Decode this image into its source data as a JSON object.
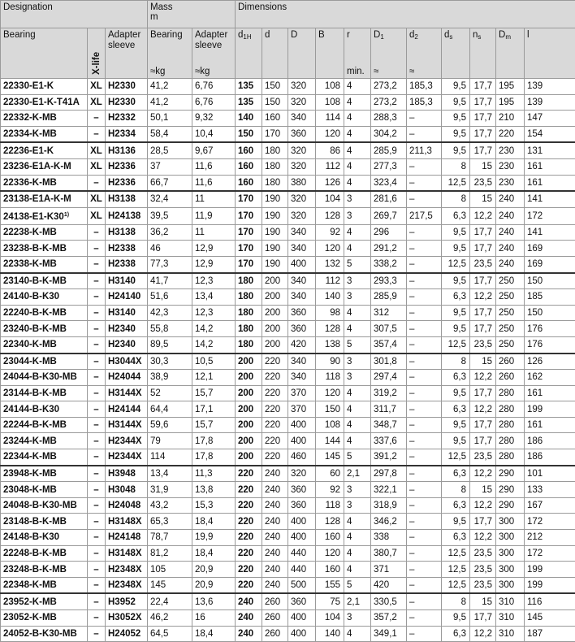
{
  "header": {
    "designation": "Designation",
    "mass": "Mass",
    "mass_symbol": "m",
    "dimensions": "Dimensions",
    "columns": [
      {
        "label": "Bearing"
      },
      {
        "label": "X-life"
      },
      {
        "label": "Adapter sleeve"
      },
      {
        "label": "Bearing",
        "unit": "≈kg"
      },
      {
        "label": "Adapter sleeve",
        "unit": "≈kg"
      },
      {
        "label": "d",
        "sub": "1H"
      },
      {
        "label": "d"
      },
      {
        "label": "D"
      },
      {
        "label": "B"
      },
      {
        "label": "r",
        "unit": "min."
      },
      {
        "label": "D",
        "sub": "1",
        "unit": "≈"
      },
      {
        "label": "d",
        "sub": "2",
        "unit": "≈"
      },
      {
        "label": "d",
        "sub": "s"
      },
      {
        "label": "n",
        "sub": "s"
      },
      {
        "label": "D",
        "sub": "m"
      },
      {
        "label": "l"
      }
    ]
  },
  "table": {
    "groups": [
      [
        [
          "22330-E1-K",
          "XL",
          "H2330",
          "41,2",
          "6,76",
          "135",
          "150",
          "320",
          "108",
          "4",
          "273,2",
          "185,3",
          "9,5",
          "17,7",
          "195",
          "139"
        ],
        [
          "22330-E1-K-T41A",
          "XL",
          "H2330",
          "41,2",
          "6,76",
          "135",
          "150",
          "320",
          "108",
          "4",
          "273,2",
          "185,3",
          "9,5",
          "17,7",
          "195",
          "139"
        ],
        [
          "22332-K-MB",
          "–",
          "H2332",
          "50,1",
          "9,32",
          "140",
          "160",
          "340",
          "114",
          "4",
          "288,3",
          "–",
          "9,5",
          "17,7",
          "210",
          "147"
        ],
        [
          "22334-K-MB",
          "–",
          "H2334",
          "58,4",
          "10,4",
          "150",
          "170",
          "360",
          "120",
          "4",
          "304,2",
          "–",
          "9,5",
          "17,7",
          "220",
          "154"
        ]
      ],
      [
        [
          "22236-E1-K",
          "XL",
          "H3136",
          "28,5",
          "9,67",
          "160",
          "180",
          "320",
          "86",
          "4",
          "285,9",
          "211,3",
          "9,5",
          "17,7",
          "230",
          "131"
        ],
        [
          "23236-E1A-K-M",
          "XL",
          "H2336",
          "37",
          "11,6",
          "160",
          "180",
          "320",
          "112",
          "4",
          "277,3",
          "–",
          "8",
          "15",
          "230",
          "161"
        ],
        [
          "22336-K-MB",
          "–",
          "H2336",
          "66,7",
          "11,6",
          "160",
          "180",
          "380",
          "126",
          "4",
          "323,4",
          "–",
          "12,5",
          "23,5",
          "230",
          "161"
        ]
      ],
      [
        [
          "23138-E1A-K-M",
          "XL",
          "H3138",
          "32,4",
          "11",
          "170",
          "190",
          "320",
          "104",
          "3",
          "281,6",
          "–",
          "8",
          "15",
          "240",
          "141"
        ],
        [
          {
            "text": "24138-E1-K30",
            "note": "1)"
          },
          "XL",
          "H24138",
          "39,5",
          "11,9",
          "170",
          "190",
          "320",
          "128",
          "3",
          "269,7",
          "217,5",
          "6,3",
          "12,2",
          "240",
          "172"
        ],
        [
          "22238-K-MB",
          "–",
          "H3138",
          "36,2",
          "11",
          "170",
          "190",
          "340",
          "92",
          "4",
          "296",
          "–",
          "9,5",
          "17,7",
          "240",
          "141"
        ],
        [
          "23238-B-K-MB",
          "–",
          "H2338",
          "46",
          "12,9",
          "170",
          "190",
          "340",
          "120",
          "4",
          "291,2",
          "–",
          "9,5",
          "17,7",
          "240",
          "169"
        ],
        [
          "22338-K-MB",
          "–",
          "H2338",
          "77,3",
          "12,9",
          "170",
          "190",
          "400",
          "132",
          "5",
          "338,2",
          "–",
          "12,5",
          "23,5",
          "240",
          "169"
        ]
      ],
      [
        [
          "23140-B-K-MB",
          "–",
          "H3140",
          "41,7",
          "12,3",
          "180",
          "200",
          "340",
          "112",
          "3",
          "293,3",
          "–",
          "9,5",
          "17,7",
          "250",
          "150"
        ],
        [
          "24140-B-K30",
          "–",
          "H24140",
          "51,6",
          "13,4",
          "180",
          "200",
          "340",
          "140",
          "3",
          "285,9",
          "–",
          "6,3",
          "12,2",
          "250",
          "185"
        ],
        [
          "22240-B-K-MB",
          "–",
          "H3140",
          "42,3",
          "12,3",
          "180",
          "200",
          "360",
          "98",
          "4",
          "312",
          "–",
          "9,5",
          "17,7",
          "250",
          "150"
        ],
        [
          "23240-B-K-MB",
          "–",
          "H2340",
          "55,8",
          "14,2",
          "180",
          "200",
          "360",
          "128",
          "4",
          "307,5",
          "–",
          "9,5",
          "17,7",
          "250",
          "176"
        ],
        [
          "22340-K-MB",
          "–",
          "H2340",
          "89,5",
          "14,2",
          "180",
          "200",
          "420",
          "138",
          "5",
          "357,4",
          "–",
          "12,5",
          "23,5",
          "250",
          "176"
        ]
      ],
      [
        [
          "23044-K-MB",
          "–",
          "H3044X",
          "30,3",
          "10,5",
          "200",
          "220",
          "340",
          "90",
          "3",
          "301,8",
          "–",
          "8",
          "15",
          "260",
          "126"
        ],
        [
          "24044-B-K30-MB",
          "–",
          "H24044",
          "38,9",
          "12,1",
          "200",
          "220",
          "340",
          "118",
          "3",
          "297,4",
          "–",
          "6,3",
          "12,2",
          "260",
          "162"
        ],
        [
          "23144-B-K-MB",
          "–",
          "H3144X",
          "52",
          "15,7",
          "200",
          "220",
          "370",
          "120",
          "4",
          "319,2",
          "–",
          "9,5",
          "17,7",
          "280",
          "161"
        ],
        [
          "24144-B-K30",
          "–",
          "H24144",
          "64,4",
          "17,1",
          "200",
          "220",
          "370",
          "150",
          "4",
          "311,7",
          "–",
          "6,3",
          "12,2",
          "280",
          "199"
        ],
        [
          "22244-B-K-MB",
          "–",
          "H3144X",
          "59,6",
          "15,7",
          "200",
          "220",
          "400",
          "108",
          "4",
          "348,7",
          "–",
          "9,5",
          "17,7",
          "280",
          "161"
        ],
        [
          "23244-K-MB",
          "–",
          "H2344X",
          "79",
          "17,8",
          "200",
          "220",
          "400",
          "144",
          "4",
          "337,6",
          "–",
          "9,5",
          "17,7",
          "280",
          "186"
        ],
        [
          "22344-K-MB",
          "–",
          "H2344X",
          "114",
          "17,8",
          "200",
          "220",
          "460",
          "145",
          "5",
          "391,2",
          "–",
          "12,5",
          "23,5",
          "280",
          "186"
        ]
      ],
      [
        [
          "23948-K-MB",
          "–",
          "H3948",
          "13,4",
          "11,3",
          "220",
          "240",
          "320",
          "60",
          "2,1",
          "297,8",
          "–",
          "6,3",
          "12,2",
          "290",
          "101"
        ],
        [
          "23048-K-MB",
          "–",
          "H3048",
          "31,9",
          "13,8",
          "220",
          "240",
          "360",
          "92",
          "3",
          "322,1",
          "–",
          "8",
          "15",
          "290",
          "133"
        ],
        [
          "24048-B-K30-MB",
          "–",
          "H24048",
          "43,2",
          "15,3",
          "220",
          "240",
          "360",
          "118",
          "3",
          "318,9",
          "–",
          "6,3",
          "12,2",
          "290",
          "167"
        ],
        [
          "23148-B-K-MB",
          "–",
          "H3148X",
          "65,3",
          "18,4",
          "220",
          "240",
          "400",
          "128",
          "4",
          "346,2",
          "–",
          "9,5",
          "17,7",
          "300",
          "172"
        ],
        [
          "24148-B-K30",
          "–",
          "H24148",
          "78,7",
          "19,9",
          "220",
          "240",
          "400",
          "160",
          "4",
          "338",
          "–",
          "6,3",
          "12,2",
          "300",
          "212"
        ],
        [
          "22248-B-K-MB",
          "–",
          "H3148X",
          "81,2",
          "18,4",
          "220",
          "240",
          "440",
          "120",
          "4",
          "380,7",
          "–",
          "12,5",
          "23,5",
          "300",
          "172"
        ],
        [
          "23248-B-K-MB",
          "–",
          "H2348X",
          "105",
          "20,9",
          "220",
          "240",
          "440",
          "160",
          "4",
          "371",
          "–",
          "12,5",
          "23,5",
          "300",
          "199"
        ],
        [
          "22348-K-MB",
          "–",
          "H2348X",
          "145",
          "20,9",
          "220",
          "240",
          "500",
          "155",
          "5",
          "420",
          "–",
          "12,5",
          "23,5",
          "300",
          "199"
        ]
      ],
      [
        [
          "23952-K-MB",
          "–",
          "H3952",
          "22,4",
          "13,6",
          "240",
          "260",
          "360",
          "75",
          "2,1",
          "330,5",
          "–",
          "8",
          "15",
          "310",
          "116"
        ],
        [
          "23052-K-MB",
          "–",
          "H3052X",
          "46,2",
          "16",
          "240",
          "260",
          "400",
          "104",
          "3",
          "357,2",
          "–",
          "9,5",
          "17,7",
          "310",
          "145"
        ],
        [
          "24052-B-K30-MB",
          "–",
          "H24052",
          "64,5",
          "18,4",
          "240",
          "260",
          "400",
          "140",
          "4",
          "349,1",
          "–",
          "6,3",
          "12,2",
          "310",
          "187"
        ]
      ]
    ]
  }
}
